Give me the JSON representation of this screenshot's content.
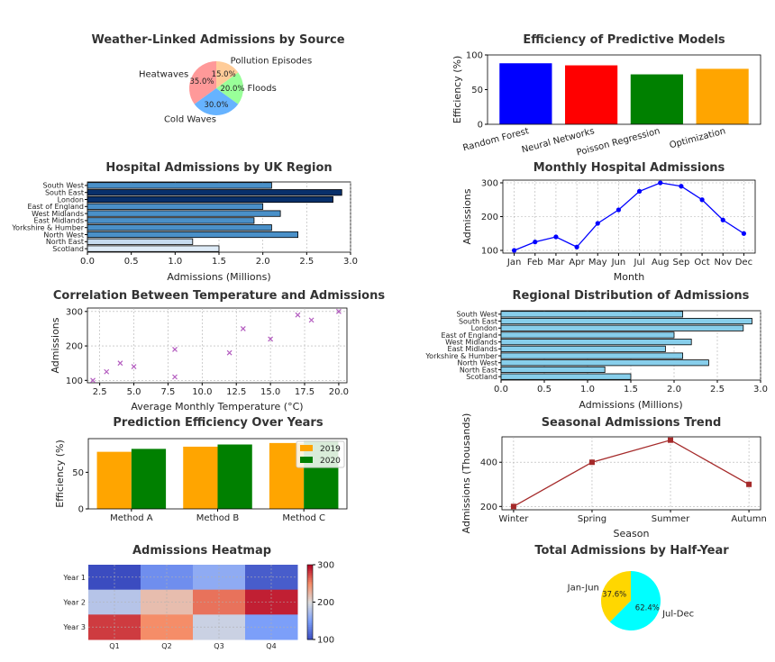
{
  "chart_data": [
    {
      "id": "weather",
      "type": "pie",
      "title": "Weather-Linked Admissions by Source",
      "labels": [
        "Heatwaves",
        "Cold Waves",
        "Floods",
        "Pollution Episodes"
      ],
      "values": [
        35.0,
        30.0,
        20.0,
        15.0
      ],
      "pct_labels": [
        "35.0%",
        "30.0%",
        "20.0%",
        "15.0%"
      ],
      "colors": [
        "#ff9999",
        "#66b3ff",
        "#99ff99",
        "#ffcc99"
      ]
    },
    {
      "id": "efficiency",
      "type": "bar",
      "title": "Efficiency of Predictive Models",
      "ylabel": "Efficiency (%)",
      "categories": [
        "Random Forest",
        "Neural Networks",
        "Poisson Regression",
        "Optimization"
      ],
      "values": [
        88,
        85,
        72,
        80
      ],
      "colors": [
        "#0000ff",
        "#ff0000",
        "#008000",
        "#ffa500"
      ],
      "ylim": [
        0,
        100
      ],
      "yticks": [
        "0",
        "50",
        "100"
      ]
    },
    {
      "id": "region1",
      "type": "bar",
      "orientation": "horizontal",
      "title": "Hospital Admissions by UK Region",
      "xlabel": "Admissions (Millions)",
      "categories": [
        "South West",
        "South East",
        "London",
        "East of England",
        "West Midlands",
        "East Midlands",
        "Yorkshire & Humber",
        "North West",
        "North East",
        "Scotland"
      ],
      "values": [
        2.1,
        2.9,
        2.8,
        2.0,
        2.2,
        1.9,
        2.1,
        2.4,
        1.2,
        1.5
      ],
      "colors": [
        "#4a90c8",
        "#08306b",
        "#08306b",
        "#4a90c8",
        "#4a90c8",
        "#4a90c8",
        "#4a90c8",
        "#4a90c8",
        "#c6dbef",
        "#deebf7"
      ],
      "xlim": [
        0,
        3.0
      ],
      "xticks": [
        "0.0",
        "0.5",
        "1.0",
        "1.5",
        "2.0",
        "2.5",
        "3.0"
      ]
    },
    {
      "id": "monthly",
      "type": "line",
      "title": "Monthly Hospital Admissions",
      "xlabel": "Month",
      "ylabel": "Admissions",
      "categories": [
        "Jan",
        "Feb",
        "Mar",
        "Apr",
        "May",
        "Jun",
        "Jul",
        "Aug",
        "Sep",
        "Oct",
        "Nov",
        "Dec"
      ],
      "values": [
        100,
        125,
        140,
        110,
        180,
        220,
        275,
        300,
        290,
        250,
        190,
        150
      ],
      "color": "#0000ff",
      "ylim": [
        92,
        308
      ],
      "yticks": [
        "100",
        "200",
        "300"
      ]
    },
    {
      "id": "temperature",
      "type": "scatter",
      "title": "Correlation Between Temperature and Admissions",
      "xlabel": "Average Monthly Temperature (°C)",
      "ylabel": "Admissions",
      "x": [
        2,
        3,
        4,
        5,
        8,
        8,
        12,
        13,
        15,
        17,
        18,
        20
      ],
      "y": [
        100,
        125,
        150,
        140,
        190,
        110,
        180,
        250,
        220,
        290,
        275,
        300
      ],
      "color": "#b35bbf",
      "xlim": [
        1.6,
        20.6
      ],
      "ylim": [
        93,
        310
      ],
      "xticks": [
        "2.5",
        "5.0",
        "7.5",
        "10.0",
        "12.5",
        "15.0",
        "17.5",
        "20.0"
      ],
      "yticks": [
        "100",
        "200",
        "300"
      ]
    },
    {
      "id": "region2",
      "type": "bar",
      "orientation": "horizontal",
      "title": "Regional Distribution of Admissions",
      "xlabel": "Admissions (Millions)",
      "categories": [
        "South West",
        "South East",
        "London",
        "East of England",
        "West Midlands",
        "East Midlands",
        "Yorkshire & Humber",
        "North West",
        "North East",
        "Scotland"
      ],
      "values": [
        2.1,
        2.9,
        2.8,
        2.0,
        2.2,
        1.9,
        2.1,
        2.4,
        1.2,
        1.5
      ],
      "color": "#87ceeb",
      "xlim": [
        0,
        3.0
      ],
      "xticks": [
        "0.0",
        "0.5",
        "1.0",
        "1.5",
        "2.0",
        "2.5",
        "3.0"
      ]
    },
    {
      "id": "years",
      "type": "bar",
      "title": "Prediction Efficiency Over Years",
      "ylabel": "Efficiency (%)",
      "categories": [
        "Method A",
        "Method B",
        "Method C"
      ],
      "series": [
        {
          "name": "2019",
          "values": [
            78,
            85,
            90
          ],
          "color": "#ffa500"
        },
        {
          "name": "2020",
          "values": [
            82,
            88,
            93
          ],
          "color": "#008000"
        }
      ],
      "ylim": [
        0,
        96
      ],
      "yticks": [
        "0",
        "50"
      ],
      "legend": "upper-right"
    },
    {
      "id": "seasonal",
      "type": "line",
      "title": "Seasonal Admissions Trend",
      "xlabel": "Season",
      "ylabel": "Admissions (Thousands)",
      "categories": [
        "Winter",
        "Spring",
        "Summer",
        "Autumn"
      ],
      "values": [
        200,
        400,
        500,
        300
      ],
      "color": "#a52a2a",
      "ylim": [
        185,
        515
      ],
      "yticks": [
        "200",
        "400"
      ]
    },
    {
      "id": "heatmap",
      "type": "heatmap",
      "title": "Admissions Heatmap",
      "rows": [
        "Year 1",
        "Year 2",
        "Year 3"
      ],
      "cols": [
        "Q1",
        "Q2",
        "Q3",
        "Q4"
      ],
      "values": [
        [
          100,
          140,
          160,
          110
        ],
        [
          180,
          220,
          260,
          290
        ],
        [
          280,
          250,
          190,
          150
        ]
      ],
      "colorbar": {
        "min": 100,
        "max": 300,
        "ticks": [
          "100",
          "200",
          "300"
        ]
      }
    },
    {
      "id": "halfyear",
      "type": "pie",
      "title": "Total Admissions by Half-Year",
      "labels": [
        "Jan-Jun",
        "Jul-Dec"
      ],
      "values": [
        37.6,
        62.4
      ],
      "pct_labels": [
        "37.6%",
        "62.4%"
      ],
      "colors": [
        "#ffd700",
        "#00ffff"
      ]
    }
  ]
}
